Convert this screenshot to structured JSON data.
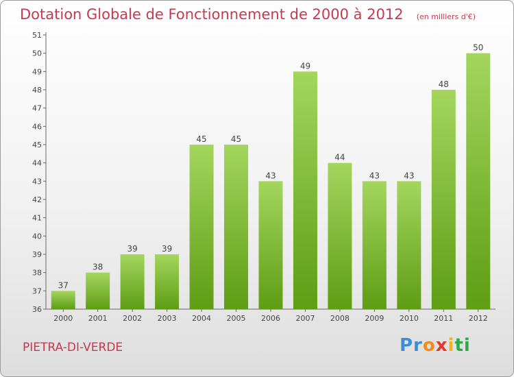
{
  "title": {
    "main": "Dotation Globale de Fonctionnement de 2000 à 2012",
    "unit": "(en milliers d'€)"
  },
  "commune": "PIETRA-DI-VERDE",
  "logo": {
    "text": "Proxiti",
    "parts": [
      "Pr",
      "o",
      "x",
      "i",
      "t",
      "i"
    ]
  },
  "colors": {
    "title": "#c8384e",
    "bar_top": "#a4d65e",
    "bar_bottom": "#5e9d14"
  },
  "chart_data": {
    "type": "bar",
    "categories": [
      "2000",
      "2001",
      "2002",
      "2003",
      "2004",
      "2005",
      "2006",
      "2007",
      "2008",
      "2009",
      "2010",
      "2011",
      "2012"
    ],
    "values": [
      37,
      38,
      39,
      39,
      45,
      45,
      43,
      49,
      44,
      43,
      43,
      48,
      50
    ],
    "title": "Dotation Globale de Fonctionnement de 2000 à 2012",
    "subtitle": "(en milliers d'€)",
    "xlabel": "",
    "ylabel": "",
    "ylim": [
      36,
      51
    ],
    "yticks": [
      36,
      37,
      38,
      39,
      40,
      41,
      42,
      43,
      44,
      45,
      46,
      47,
      48,
      49,
      50,
      51
    ],
    "grid": false,
    "legend": "none"
  }
}
